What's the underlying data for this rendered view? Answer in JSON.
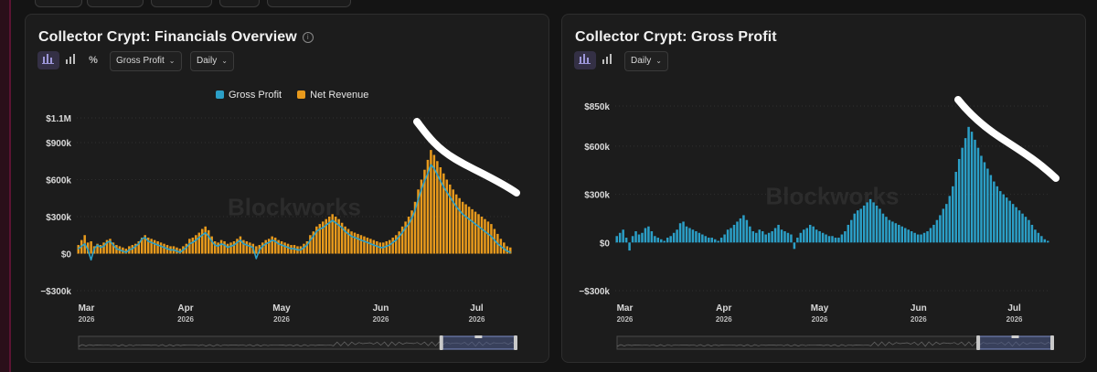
{
  "watermark": "Blockworks",
  "colors": {
    "gross_profit": "#2b9fc7",
    "net_revenue": "#e89a1c",
    "background": "#1c1c1c"
  },
  "panels": {
    "left": {
      "title": "Collector Crypt: Financials Overview",
      "controls": {
        "chart_icons": [
          "bar-chart-icon",
          "column-chart-icon",
          "percent-icon"
        ],
        "metric_dropdown": "Gross Profit",
        "interval_dropdown": "Daily"
      },
      "legend": [
        "Gross Profit",
        "Net Revenue"
      ]
    },
    "right": {
      "title": "Collector Crypt: Gross Profit",
      "controls": {
        "chart_icons": [
          "bar-chart-icon",
          "column-chart-icon"
        ],
        "interval_dropdown": "Daily"
      }
    }
  },
  "chart_data": [
    {
      "type": "bar",
      "title": "Collector Crypt: Financials Overview",
      "x_range": [
        "2026-02-26",
        "2026-07-12"
      ],
      "x_ticks": [
        {
          "date": "2026-03-01",
          "label": "Mar",
          "year": "2026"
        },
        {
          "date": "2026-04-01",
          "label": "Apr",
          "year": "2026"
        },
        {
          "date": "2026-05-01",
          "label": "May",
          "year": "2026"
        },
        {
          "date": "2026-06-01",
          "label": "Jun",
          "year": "2026"
        },
        {
          "date": "2026-07-01",
          "label": "Jul",
          "year": "2026"
        }
      ],
      "y_ticks": [
        {
          "value": 1100000,
          "label": "$1.1M"
        },
        {
          "value": 900000,
          "label": "$900k"
        },
        {
          "value": 600000,
          "label": "$600k"
        },
        {
          "value": 300000,
          "label": "$300k"
        },
        {
          "value": 0,
          "label": "$0"
        },
        {
          "value": -300000,
          "label": "−$300k"
        }
      ],
      "ylim": [
        -300000,
        1100000
      ],
      "grid": true,
      "legend_position": "top-center",
      "series": [
        {
          "name": "Net Revenue",
          "chart_style": "bar",
          "color": "#e89a1c",
          "values_k": [
            70,
            110,
            150,
            90,
            100,
            60,
            80,
            70,
            90,
            110,
            120,
            90,
            70,
            60,
            50,
            40,
            60,
            70,
            80,
            100,
            130,
            150,
            130,
            120,
            110,
            100,
            90,
            80,
            70,
            60,
            60,
            50,
            40,
            60,
            80,
            120,
            130,
            150,
            170,
            200,
            220,
            190,
            140,
            100,
            90,
            110,
            100,
            80,
            90,
            100,
            120,
            140,
            110,
            100,
            90,
            80,
            60,
            70,
            90,
            110,
            120,
            140,
            130,
            110,
            100,
            90,
            80,
            70,
            70,
            60,
            60,
            80,
            100,
            150,
            180,
            220,
            240,
            260,
            280,
            300,
            320,
            300,
            280,
            250,
            220,
            200,
            180,
            170,
            160,
            150,
            140,
            130,
            120,
            110,
            100,
            90,
            90,
            100,
            110,
            130,
            150,
            180,
            220,
            260,
            300,
            350,
            420,
            520,
            600,
            680,
            760,
            840,
            800,
            750,
            700,
            650,
            600,
            560,
            520,
            480,
            450,
            420,
            400,
            380,
            360,
            340,
            320,
            300,
            280,
            260,
            240,
            200,
            160,
            120,
            90,
            60,
            50
          ]
        },
        {
          "name": "Gross Profit",
          "chart_style": "line",
          "color": "#2b9fc7",
          "values_k": [
            40,
            60,
            80,
            30,
            -50,
            40,
            70,
            50,
            60,
            90,
            100,
            70,
            40,
            30,
            20,
            10,
            30,
            40,
            60,
            80,
            120,
            130,
            100,
            90,
            80,
            70,
            60,
            50,
            40,
            30,
            30,
            20,
            10,
            30,
            50,
            80,
            90,
            110,
            130,
            150,
            170,
            140,
            100,
            70,
            60,
            80,
            70,
            50,
            60,
            70,
            90,
            110,
            80,
            70,
            60,
            50,
            -40,
            30,
            60,
            80,
            90,
            110,
            100,
            80,
            70,
            60,
            50,
            40,
            40,
            30,
            30,
            50,
            70,
            110,
            140,
            180,
            200,
            210,
            230,
            250,
            270,
            250,
            230,
            210,
            180,
            160,
            140,
            130,
            120,
            110,
            100,
            90,
            80,
            70,
            60,
            50,
            50,
            60,
            70,
            90,
            110,
            140,
            170,
            210,
            240,
            290,
            350,
            440,
            520,
            590,
            650,
            720,
            690,
            640,
            590,
            540,
            500,
            460,
            420,
            380,
            350,
            320,
            300,
            280,
            260,
            240,
            220,
            200,
            180,
            160,
            140,
            110,
            80,
            60,
            40,
            20,
            10
          ]
        }
      ]
    },
    {
      "type": "bar",
      "title": "Collector Crypt: Gross Profit",
      "x_range": [
        "2026-02-26",
        "2026-07-12"
      ],
      "x_ticks": [
        {
          "date": "2026-03-01",
          "label": "Mar",
          "year": "2026"
        },
        {
          "date": "2026-04-01",
          "label": "Apr",
          "year": "2026"
        },
        {
          "date": "2026-05-01",
          "label": "May",
          "year": "2026"
        },
        {
          "date": "2026-06-01",
          "label": "Jun",
          "year": "2026"
        },
        {
          "date": "2026-07-01",
          "label": "Jul",
          "year": "2026"
        }
      ],
      "y_ticks": [
        {
          "value": 850000,
          "label": "$850k"
        },
        {
          "value": 600000,
          "label": "$600k"
        },
        {
          "value": 300000,
          "label": "$300k"
        },
        {
          "value": 0,
          "label": "$0"
        },
        {
          "value": -300000,
          "label": "−$300k"
        }
      ],
      "ylim": [
        -300000,
        850000
      ],
      "grid": true,
      "series": [
        {
          "name": "Gross Profit",
          "color": "#2b9fc7",
          "values_k": [
            40,
            60,
            80,
            30,
            -50,
            40,
            70,
            50,
            60,
            90,
            100,
            70,
            40,
            30,
            20,
            10,
            30,
            40,
            60,
            80,
            120,
            130,
            100,
            90,
            80,
            70,
            60,
            50,
            40,
            30,
            30,
            20,
            10,
            30,
            50,
            80,
            90,
            110,
            130,
            150,
            170,
            140,
            100,
            70,
            60,
            80,
            70,
            50,
            60,
            70,
            90,
            110,
            80,
            70,
            60,
            50,
            -40,
            30,
            60,
            80,
            90,
            110,
            100,
            80,
            70,
            60,
            50,
            40,
            40,
            30,
            30,
            50,
            70,
            110,
            140,
            180,
            200,
            210,
            230,
            250,
            270,
            250,
            230,
            210,
            180,
            160,
            140,
            130,
            120,
            110,
            100,
            90,
            80,
            70,
            60,
            50,
            50,
            60,
            70,
            90,
            110,
            140,
            170,
            210,
            240,
            290,
            350,
            440,
            520,
            590,
            650,
            720,
            690,
            640,
            590,
            540,
            500,
            460,
            420,
            380,
            350,
            320,
            300,
            280,
            260,
            240,
            220,
            200,
            180,
            160,
            140,
            110,
            80,
            60,
            40,
            20,
            10
          ]
        }
      ]
    }
  ]
}
